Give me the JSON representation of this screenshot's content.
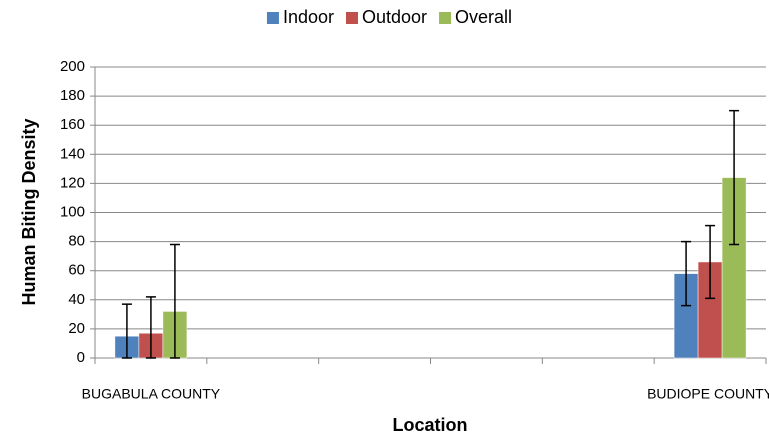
{
  "chart_data": {
    "type": "bar",
    "x_label": "Location",
    "y_label": "Human Biting Density",
    "categories": [
      "BUGABULA COUNTY",
      null,
      null,
      null,
      null,
      "BUDIOPE COUNTY"
    ],
    "series": [
      {
        "name": "Indoor",
        "color": "#4f81bd",
        "values": [
          15,
          null,
          null,
          null,
          null,
          58
        ],
        "errors": [
          22,
          null,
          null,
          null,
          null,
          22
        ]
      },
      {
        "name": "Outdoor",
        "color": "#c0504d",
        "values": [
          17,
          null,
          null,
          null,
          null,
          66
        ],
        "errors": [
          25,
          null,
          null,
          null,
          null,
          25
        ]
      },
      {
        "name": "Overall",
        "color": "#9bbb59",
        "values": [
          32,
          null,
          null,
          null,
          null,
          124
        ],
        "errors": [
          46,
          null,
          null,
          null,
          null,
          46
        ]
      }
    ],
    "ylim": [
      0,
      200
    ],
    "yticks": [
      0,
      20,
      40,
      60,
      80,
      100,
      120,
      140,
      160,
      180,
      200
    ],
    "grid": true,
    "legend": "top"
  }
}
